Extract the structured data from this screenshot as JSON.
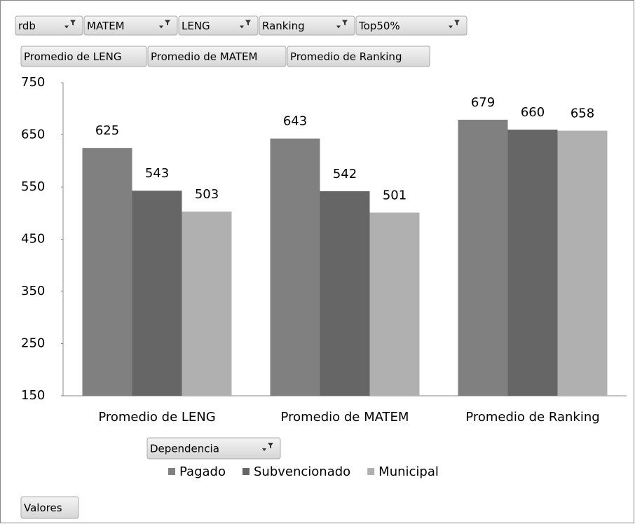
{
  "pivot": {
    "filters": [
      "rdb",
      "MATEM",
      "LENG",
      "Ranking",
      "Top50%"
    ],
    "value_fields": [
      "Promedio de LENG",
      "Promedio de MATEM",
      "Promedio de Ranking"
    ],
    "legend_field": "Dependencia",
    "values_button": "Valores"
  },
  "chart_data": {
    "type": "bar",
    "categories": [
      "Promedio de LENG",
      "Promedio de MATEM",
      "Promedio de Ranking"
    ],
    "series": [
      {
        "name": "Pagado",
        "color": "#808080",
        "values": [
          625,
          643,
          679
        ]
      },
      {
        "name": "Subvencionado",
        "color": "#666666",
        "values": [
          543,
          542,
          660
        ]
      },
      {
        "name": "Municipal",
        "color": "#b0b0b0",
        "values": [
          503,
          501,
          658
        ]
      }
    ],
    "ylim": [
      150,
      750
    ],
    "yticks": [
      150,
      250,
      350,
      450,
      550,
      650,
      750
    ],
    "grid": false,
    "legend": "bottom"
  }
}
